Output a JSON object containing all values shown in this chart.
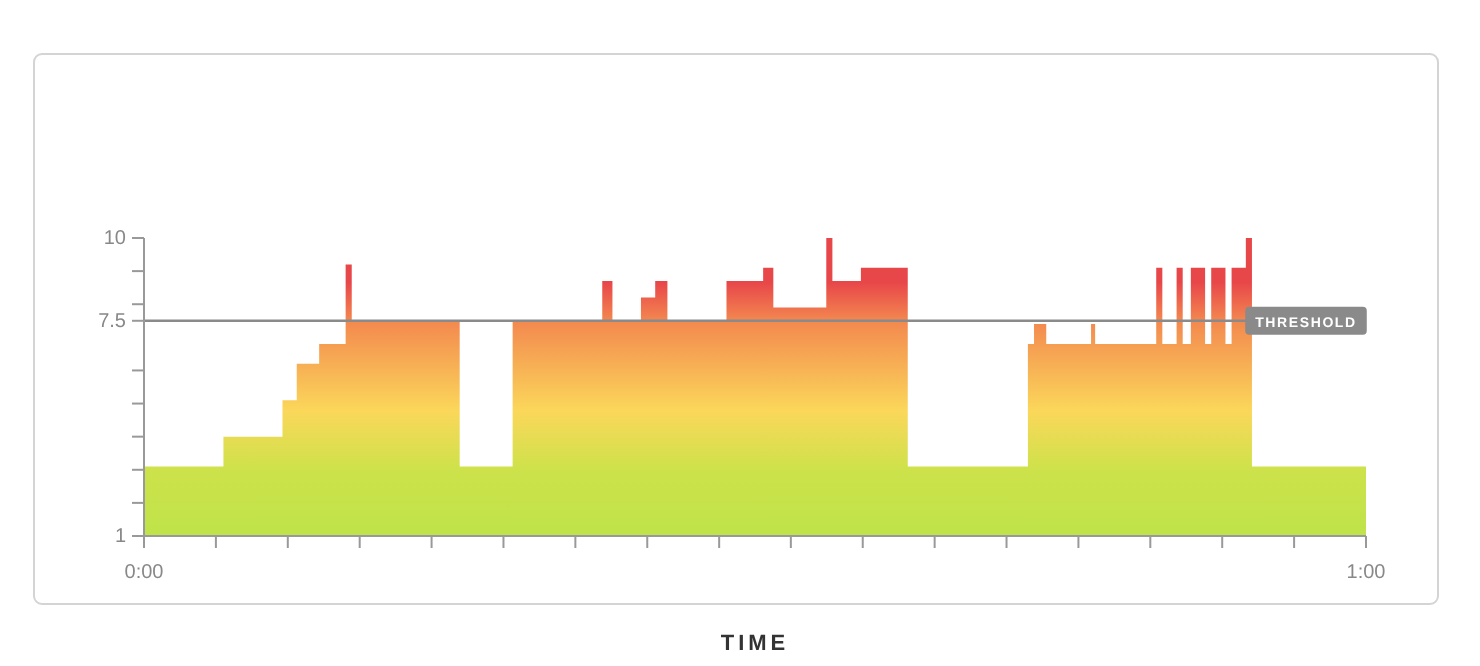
{
  "chart_data": {
    "type": "area",
    "xlabel": "TIME",
    "x": [
      0,
      3.9,
      3.9,
      6.8,
      6.8,
      7.5,
      7.5,
      8.6,
      8.6,
      9.9,
      9.9,
      10.2,
      10.2,
      15.5,
      15.5,
      18.1,
      18.1,
      22.5,
      22.5,
      23.0,
      23.0,
      24.4,
      24.4,
      25.1,
      25.1,
      25.7,
      25.7,
      28.6,
      28.6,
      30.4,
      30.4,
      30.9,
      30.9,
      33.5,
      33.5,
      33.8,
      33.8,
      35.2,
      35.2,
      37.5,
      37.5,
      43.4,
      43.4,
      43.7,
      43.7,
      44.3,
      44.3,
      46.5,
      46.5,
      46.7,
      46.7,
      49.7,
      49.7,
      50.0,
      50.0,
      50.7,
      50.7,
      51.0,
      51.0,
      51.4,
      51.4,
      52.1,
      52.1,
      52.4,
      52.4,
      53.1,
      53.1,
      53.4,
      53.4,
      54.1,
      54.1,
      54.4,
      54.4,
      60
    ],
    "series": [
      {
        "color": "#e8474a",
        "values": [
          3.1,
          3.1,
          4,
          4,
          5.1,
          5.1,
          6.2,
          6.2,
          6.8,
          6.8,
          9.2,
          9.2,
          7.5,
          7.5,
          3.1,
          3.1,
          7.5,
          7.5,
          8.7,
          8.7,
          7.5,
          7.5,
          8.2,
          8.2,
          8.7,
          8.7,
          7.5,
          7.5,
          8.7,
          8.7,
          9.1,
          9.1,
          7.9,
          7.9,
          10,
          10,
          8.7,
          8.7,
          9.1,
          9.1,
          3.1,
          3.1,
          6.8,
          6.8,
          7.4,
          7.4,
          6.8,
          6.8,
          7.4,
          7.4,
          6.8,
          6.8,
          9.1,
          9.1,
          6.8,
          6.8,
          9.1,
          9.1,
          6.8,
          6.8,
          9.1,
          9.1,
          6.8,
          6.8,
          9.1,
          9.1,
          6.8,
          6.8,
          9.1,
          9.1,
          10,
          10,
          3.1,
          3.1
        ]
      }
    ],
    "xlim": [
      0,
      60
    ],
    "xticks": [
      {
        "value": 0,
        "label": "0:00"
      },
      {
        "value": 3.53,
        "label": null
      },
      {
        "value": 7.06,
        "label": null
      },
      {
        "value": 10.59,
        "label": null
      },
      {
        "value": 14.12,
        "label": null
      },
      {
        "value": 17.65,
        "label": null
      },
      {
        "value": 21.18,
        "label": null
      },
      {
        "value": 24.71,
        "label": null
      },
      {
        "value": 28.24,
        "label": null
      },
      {
        "value": 31.76,
        "label": null
      },
      {
        "value": 35.29,
        "label": null
      },
      {
        "value": 38.82,
        "label": null
      },
      {
        "value": 42.35,
        "label": null
      },
      {
        "value": 45.88,
        "label": null
      },
      {
        "value": 49.41,
        "label": null
      },
      {
        "value": 52.94,
        "label": null
      },
      {
        "value": 56.47,
        "label": null
      },
      {
        "value": 60,
        "label": "1:00"
      }
    ],
    "ylim": [
      1,
      10
    ],
    "yticks": [
      1,
      {
        "value": 2,
        "label": null
      },
      {
        "value": 3,
        "label": null
      },
      {
        "value": 4,
        "label": null
      },
      {
        "value": 5,
        "label": null
      },
      {
        "value": 6,
        "label": null
      },
      7.5,
      {
        "value": 8,
        "label": null
      },
      {
        "value": 9,
        "label": null
      },
      10
    ],
    "ref_lines": [
      {
        "axis": "y",
        "value": 7.5,
        "label": "THRESHOLD",
        "color": "#8a8a8a"
      }
    ],
    "grid": false
  }
}
